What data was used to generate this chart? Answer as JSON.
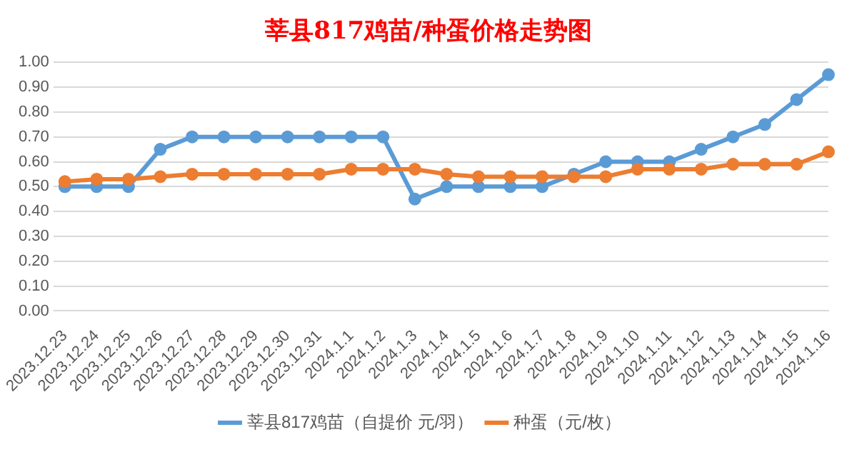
{
  "chart_data": {
    "type": "line",
    "title": "莘县817鸡苗/种蛋价格走势图",
    "categories": [
      "2023.12.23",
      "2023.12.24",
      "2023.12.25",
      "2023.12.26",
      "2023.12.27",
      "2023.12.28",
      "2023.12.29",
      "2023.12.30",
      "2023.12.31",
      "2024.1.1",
      "2024.1.2",
      "2024.1.3",
      "2024.1.4",
      "2024.1.5",
      "2024.1.6",
      "2024.1.7",
      "2024.1.8",
      "2024.1.9",
      "2024.1.10",
      "2024.1.11",
      "2024.1.12",
      "2024.1.13",
      "2024.1.14",
      "2024.1.15",
      "2024.1.16"
    ],
    "series": [
      {
        "name": "莘县817鸡苗（自提价 元/羽）",
        "color": "#5b9bd5",
        "values": [
          0.5,
          0.5,
          0.5,
          0.65,
          0.7,
          0.7,
          0.7,
          0.7,
          0.7,
          0.7,
          0.7,
          0.45,
          0.5,
          0.5,
          0.5,
          0.5,
          0.55,
          0.6,
          0.6,
          0.6,
          0.65,
          0.7,
          0.75,
          0.85,
          0.95
        ]
      },
      {
        "name": "种蛋（元/枚）",
        "color": "#ed7d31",
        "values": [
          0.52,
          0.53,
          0.53,
          0.54,
          0.55,
          0.55,
          0.55,
          0.55,
          0.55,
          0.57,
          0.57,
          0.57,
          0.55,
          0.54,
          0.54,
          0.54,
          0.54,
          0.54,
          0.57,
          0.57,
          0.57,
          0.59,
          0.59,
          0.59,
          0.64
        ]
      }
    ],
    "ylim": [
      0,
      1
    ],
    "yticks": [
      {
        "value": 0,
        "label": "0.00"
      },
      {
        "value": 0.1,
        "label": "0.10"
      },
      {
        "value": 0.2,
        "label": "0.20"
      },
      {
        "value": 0.3,
        "label": "0.30"
      },
      {
        "value": 0.4,
        "label": "0.40"
      },
      {
        "value": 0.5,
        "label": "0.50"
      },
      {
        "value": 0.6,
        "label": "0.60"
      },
      {
        "value": 0.7,
        "label": "0.70"
      },
      {
        "value": 0.8,
        "label": "0.80"
      },
      {
        "value": 0.9,
        "label": "0.90"
      },
      {
        "value": 1,
        "label": "1.00"
      }
    ],
    "grid": "y",
    "legend": "bottom",
    "marker": "circle",
    "line_style": "solid"
  }
}
